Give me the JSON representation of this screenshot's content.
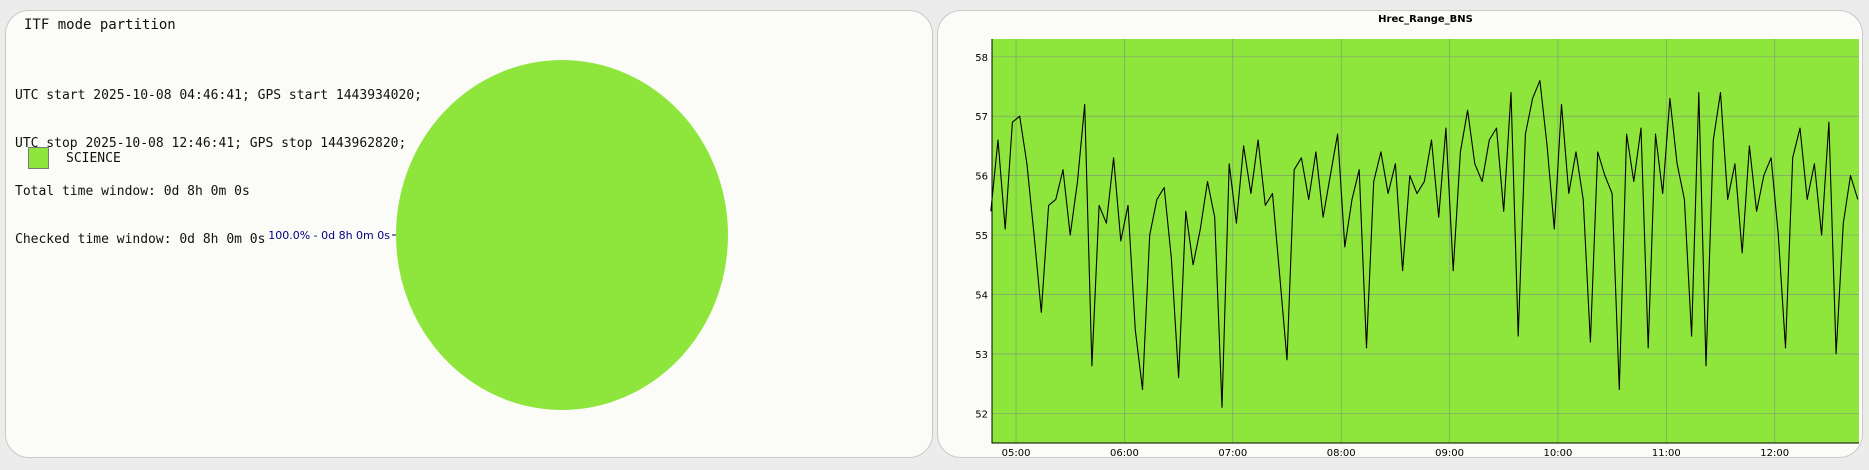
{
  "left_panel": {
    "title": "ITF mode partition",
    "info_lines": [
      "UTC start 2025-10-08 04:46:41; GPS start 1443934020;",
      "UTC stop 2025-10-08 12:46:41; GPS stop 1443962820;",
      "Total time window: 0d 8h 0m 0s",
      "Checked time window: 0d 8h 0m 0s"
    ],
    "legend": [
      {
        "label": "SCIENCE",
        "color": "#8ee63c"
      }
    ]
  },
  "chart_data": [
    {
      "type": "pie",
      "title": "",
      "slices": [
        {
          "name": "SCIENCE",
          "value": 100.0,
          "label": "100.0% - 0d 8h 0m 0s",
          "color": "#8ee63c"
        }
      ]
    },
    {
      "type": "line",
      "title": "Hrec_Range_BNS",
      "xlabel": "",
      "ylabel": "",
      "background_color": "#8ee63c",
      "line_color": "#000000",
      "grid": true,
      "xlim": [
        "04:46:41",
        "12:46:41"
      ],
      "ylim": [
        51.5,
        58.3
      ],
      "x_ticks": [
        "05:00",
        "06:00",
        "07:00",
        "08:00",
        "09:00",
        "10:00",
        "11:00",
        "12:00"
      ],
      "y_ticks": [
        52,
        53,
        54,
        55,
        56,
        57,
        58
      ],
      "series": [
        {
          "x": [
            "04:46",
            "04:50",
            "04:54",
            "04:58",
            "05:02",
            "05:06",
            "05:10",
            "05:14",
            "05:18",
            "05:22",
            "05:26",
            "05:30",
            "05:34",
            "05:38",
            "05:42",
            "05:46",
            "05:50",
            "05:54",
            "05:58",
            "06:02",
            "06:06",
            "06:10",
            "06:14",
            "06:18",
            "06:22",
            "06:26",
            "06:30",
            "06:34",
            "06:38",
            "06:42",
            "06:46",
            "06:50",
            "06:54",
            "06:58",
            "07:02",
            "07:06",
            "07:10",
            "07:14",
            "07:18",
            "07:22",
            "07:26",
            "07:30",
            "07:34",
            "07:38",
            "07:42",
            "07:46",
            "07:50",
            "07:54",
            "07:58",
            "08:02",
            "08:06",
            "08:10",
            "08:14",
            "08:18",
            "08:22",
            "08:26",
            "08:30",
            "08:34",
            "08:38",
            "08:42",
            "08:46",
            "08:50",
            "08:54",
            "08:58",
            "09:02",
            "09:06",
            "09:10",
            "09:14",
            "09:18",
            "09:22",
            "09:26",
            "09:30",
            "09:34",
            "09:38",
            "09:42",
            "09:46",
            "09:50",
            "09:54",
            "09:58",
            "10:02",
            "10:06",
            "10:10",
            "10:14",
            "10:18",
            "10:22",
            "10:26",
            "10:30",
            "10:34",
            "10:38",
            "10:42",
            "10:46",
            "10:50",
            "10:54",
            "10:58",
            "11:02",
            "11:06",
            "11:10",
            "11:14",
            "11:18",
            "11:22",
            "11:26",
            "11:30",
            "11:34",
            "11:38",
            "11:42",
            "11:46",
            "11:50",
            "11:54",
            "11:58",
            "12:02",
            "12:06",
            "12:10",
            "12:14",
            "12:18",
            "12:22",
            "12:26",
            "12:30",
            "12:34",
            "12:38",
            "12:42",
            "12:46"
          ],
          "y": [
            55.4,
            56.6,
            55.1,
            56.9,
            57.0,
            56.2,
            55.0,
            53.7,
            55.5,
            55.6,
            56.1,
            55.0,
            55.9,
            57.2,
            52.8,
            55.5,
            55.2,
            56.3,
            54.9,
            55.5,
            53.4,
            52.4,
            55.0,
            55.6,
            55.8,
            54.6,
            52.6,
            55.4,
            54.5,
            55.1,
            55.9,
            55.3,
            52.1,
            56.2,
            55.2,
            56.5,
            55.7,
            56.6,
            55.5,
            55.7,
            54.3,
            52.9,
            56.1,
            56.3,
            55.6,
            56.4,
            55.3,
            56.0,
            56.7,
            54.8,
            55.6,
            56.1,
            53.1,
            55.9,
            56.4,
            55.7,
            56.2,
            54.4,
            56.0,
            55.7,
            55.9,
            56.6,
            55.3,
            56.8,
            54.4,
            56.4,
            57.1,
            56.2,
            55.9,
            56.6,
            56.8,
            55.4,
            57.4,
            53.3,
            56.7,
            57.3,
            57.6,
            56.5,
            55.1,
            57.2,
            55.7,
            56.4,
            55.6,
            53.2,
            56.4,
            56.0,
            55.7,
            52.4,
            56.7,
            55.9,
            56.8,
            53.1,
            56.7,
            55.7,
            57.3,
            56.2,
            55.6,
            53.3,
            57.4,
            52.8,
            56.6,
            57.4,
            55.6,
            56.2,
            54.7,
            56.5,
            55.4,
            56.0,
            56.3,
            55.0,
            53.1,
            56.3,
            56.8,
            55.6,
            56.2,
            55.0,
            56.9,
            53.0,
            55.2,
            56.0,
            55.6
          ]
        }
      ]
    }
  ]
}
